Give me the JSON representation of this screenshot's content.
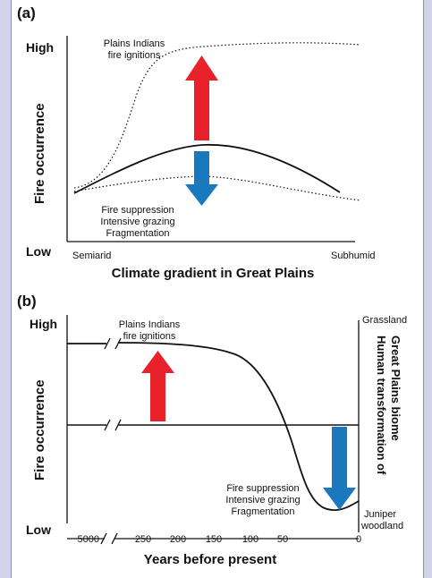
{
  "colors": {
    "up_arrow": "#e8212a",
    "down_arrow": "#1a78bd",
    "background": "#d3d3ec"
  },
  "panel_a": {
    "label": "(a)",
    "y_high": "High",
    "y_low": "Low",
    "y_title": "Fire occurrence",
    "x_left": "Semiarid",
    "x_right": "Subhumid",
    "x_title": "Climate gradient in Great Plains",
    "upper_curve_label": [
      "Plains Indians",
      "fire ignitions"
    ],
    "lower_curve_label": [
      "Fire suppression",
      "Intensive grazing",
      "Fragmentation"
    ]
  },
  "panel_b": {
    "label": "(b)",
    "y_high": "High",
    "y_low": "Low",
    "y_title": "Fire occurrence",
    "x_title": "Years before present",
    "x_ticks": [
      "5000",
      "250",
      "200",
      "150",
      "100",
      "50",
      "0"
    ],
    "upper_label": [
      "Plains Indians",
      "fire ignitions"
    ],
    "lower_label": [
      "Fire suppression",
      "Intensive grazing",
      "Fragmentation"
    ],
    "right_top": "Grassland",
    "right_bottom": [
      "Juniper",
      "woodland"
    ],
    "right_title": [
      "Human transformation of",
      "Great Plains biome"
    ]
  }
}
